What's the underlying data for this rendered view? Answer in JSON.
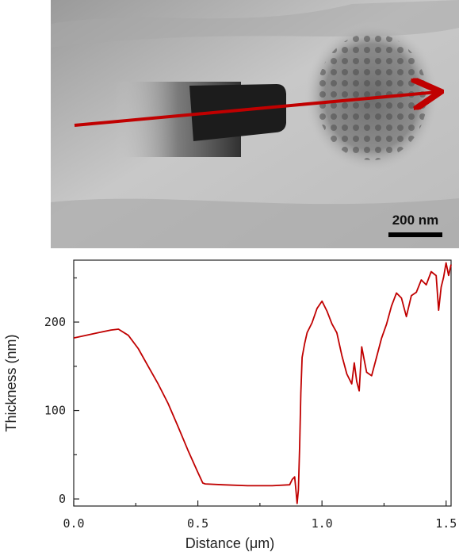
{
  "micrograph": {
    "scale_bar_label": "200 nm",
    "arrow_color": "#c00000"
  },
  "chart_data": {
    "type": "line",
    "xlabel": "Distance (μm)",
    "ylabel": "Thickness (nm)",
    "xlim": [
      0,
      1.52
    ],
    "ylim": [
      -8,
      270
    ],
    "x_ticks": [
      "0.0",
      "0.5",
      "1.0",
      "1.5"
    ],
    "y_ticks": [
      "0",
      "100",
      "200"
    ],
    "grid": false,
    "series": [
      {
        "color": "#c00000",
        "x": [
          0.0,
          0.05,
          0.1,
          0.15,
          0.18,
          0.22,
          0.26,
          0.3,
          0.34,
          0.38,
          0.42,
          0.46,
          0.5,
          0.52,
          0.53,
          0.6,
          0.7,
          0.8,
          0.87,
          0.88,
          0.89,
          0.895,
          0.9,
          0.905,
          0.91,
          0.915,
          0.92,
          0.93,
          0.94,
          0.96,
          0.98,
          1.0,
          1.02,
          1.04,
          1.06,
          1.08,
          1.1,
          1.12,
          1.13,
          1.14,
          1.15,
          1.16,
          1.17,
          1.18,
          1.2,
          1.22,
          1.24,
          1.26,
          1.28,
          1.3,
          1.32,
          1.34,
          1.36,
          1.38,
          1.4,
          1.42,
          1.44,
          1.46,
          1.47,
          1.48,
          1.49,
          1.5,
          1.51,
          1.52
        ],
        "y": [
          182,
          185,
          188,
          191,
          192,
          185,
          170,
          150,
          130,
          108,
          82,
          55,
          30,
          18,
          17,
          16,
          15,
          15,
          16,
          22,
          25,
          10,
          -5,
          10,
          60,
          120,
          160,
          178,
          190,
          200,
          215,
          222,
          210,
          195,
          185,
          160,
          140,
          130,
          155,
          135,
          125,
          175,
          160,
          145,
          140,
          160,
          180,
          195,
          215,
          230,
          225,
          205,
          230,
          235,
          250,
          245,
          260,
          255,
          215,
          240,
          250,
          265,
          250,
          262
        ]
      }
    ]
  }
}
